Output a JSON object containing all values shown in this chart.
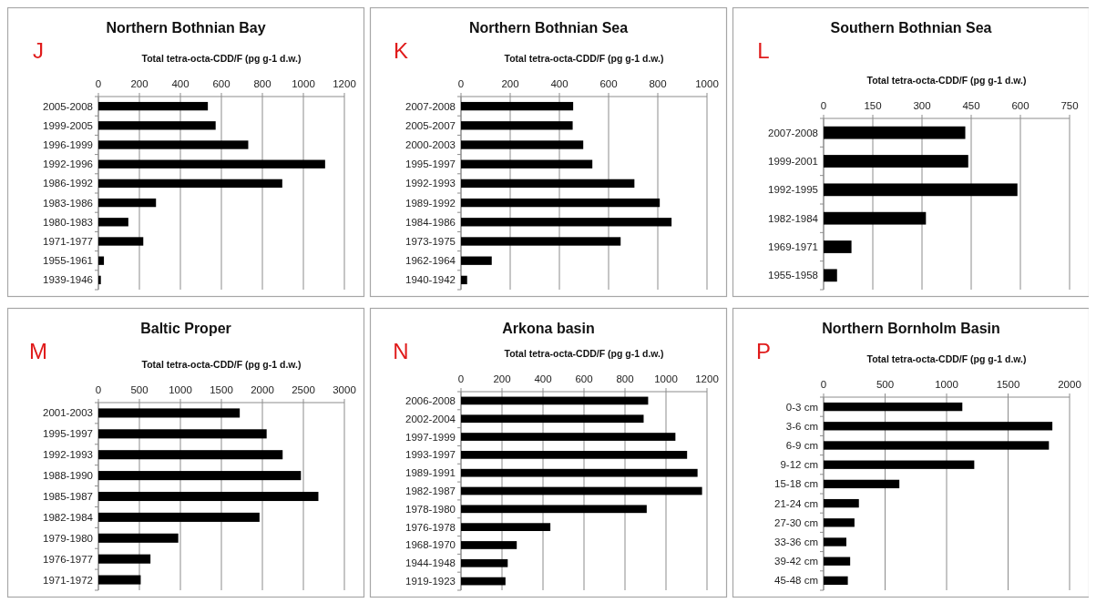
{
  "chart_data": [
    {
      "type": "bar",
      "orientation": "horizontal",
      "title": "Northern Bothnian Bay",
      "annotations": [
        "J"
      ],
      "xlabel": "Total tetra-octa-CDD/F (pg g-1 d.w.)",
      "categories": [
        "2005-2008",
        "1999-2005",
        "1996-1999",
        "1992-1996",
        "1986-1992",
        "1983-1986",
        "1980-1983",
        "1971-1977",
        "1955-1961",
        "1939-1946"
      ],
      "values": [
        534,
        572,
        731,
        1106,
        897,
        281,
        146,
        219,
        27,
        12
      ],
      "color": "#000000",
      "xlim": [
        0,
        1200
      ],
      "xticks": [
        0,
        200,
        400,
        600,
        800,
        1000,
        1200
      ],
      "grid": "x"
    },
    {
      "type": "bar",
      "orientation": "horizontal",
      "title": "Northern Bothnian Sea",
      "annotations": [
        "K"
      ],
      "xlabel": "Total tetra-octa-CDD/F (pg g-1 d.w.)",
      "categories": [
        "2007-2008",
        "2005-2007",
        "2000-2003",
        "1995-1997",
        "1992-1993",
        "1989-1992",
        "1984-1986",
        "1973-1975",
        "1962-1964",
        "1940-1942"
      ],
      "values": [
        456,
        454,
        497,
        534,
        705,
        808,
        856,
        649,
        125,
        25
      ],
      "color": "#000000",
      "xlim": [
        0,
        1000
      ],
      "xticks": [
        0,
        200,
        400,
        600,
        800,
        1000
      ],
      "grid": "x"
    },
    {
      "type": "bar",
      "orientation": "horizontal",
      "title": "Southern Bothnian Sea",
      "annotations": [
        "L"
      ],
      "xlabel": "Total tetra-octa-CDD/F (pg g-1 d.w.)",
      "categories": [
        "2007-2008",
        "1999-2001",
        "1992-1995",
        "1982-1984",
        "1969-1971",
        "1955-1958"
      ],
      "values": [
        432,
        441,
        591,
        312,
        85,
        41
      ],
      "color": "#000000",
      "xlim": [
        0,
        750
      ],
      "xticks": [
        0,
        150,
        300,
        450,
        600,
        750
      ],
      "grid": "x"
    },
    {
      "type": "bar",
      "orientation": "horizontal",
      "title": "Baltic Proper",
      "annotations": [
        "M"
      ],
      "xlabel": "Total tetra-octa-CDD/F (pg g-1 d.w.)",
      "categories": [
        "2001-2003",
        "1995-1997",
        "1992-1993",
        "1988-1990",
        "1985-1987",
        "1982-1984",
        "1979-1980",
        "1976-1977",
        "1971-1972"
      ],
      "values": [
        1724,
        2052,
        2247,
        2470,
        2683,
        1965,
        974,
        635,
        516
      ],
      "color": "#000000",
      "xlim": [
        0,
        3000
      ],
      "xticks": [
        0,
        500,
        1000,
        1500,
        2000,
        2500,
        3000
      ],
      "grid": "x"
    },
    {
      "type": "bar",
      "orientation": "horizontal",
      "title": "Arkona basin",
      "annotations": [
        "N"
      ],
      "xlabel": "Total tetra-octa-CDD/F (pg g-1 d.w.)",
      "categories": [
        "2006-2008",
        "2002-2004",
        "1997-1999",
        "1993-1997",
        "1989-1991",
        "1982-1987",
        "1978-1980",
        "1976-1978",
        "1968-1970",
        "1944-1948",
        "1919-1923"
      ],
      "values": [
        913,
        891,
        1046,
        1103,
        1154,
        1176,
        906,
        436,
        272,
        228,
        217
      ],
      "color": "#000000",
      "xlim": [
        0,
        1200
      ],
      "xticks": [
        0,
        200,
        400,
        600,
        800,
        1000,
        1200
      ],
      "grid": "x"
    },
    {
      "type": "bar",
      "orientation": "horizontal",
      "title": "Northern Bornholm Basin",
      "annotations": [
        "P"
      ],
      "xlabel": "Total tetra-octa-CDD/F (pg g-1 d.w.)",
      "categories": [
        "0-3 cm",
        "3-6 cm",
        "6-9 cm",
        "9-12 cm",
        "15-18 cm",
        "21-24 cm",
        "27-30 cm",
        "33-36 cm",
        "39-42 cm",
        "45-48 cm"
      ],
      "values": [
        1128,
        1860,
        1832,
        1225,
        616,
        287,
        251,
        185,
        216,
        197
      ],
      "color": "#000000",
      "xlim": [
        0,
        2000
      ],
      "xticks": [
        0,
        500,
        1000,
        1500,
        2000
      ],
      "grid": "x"
    }
  ]
}
